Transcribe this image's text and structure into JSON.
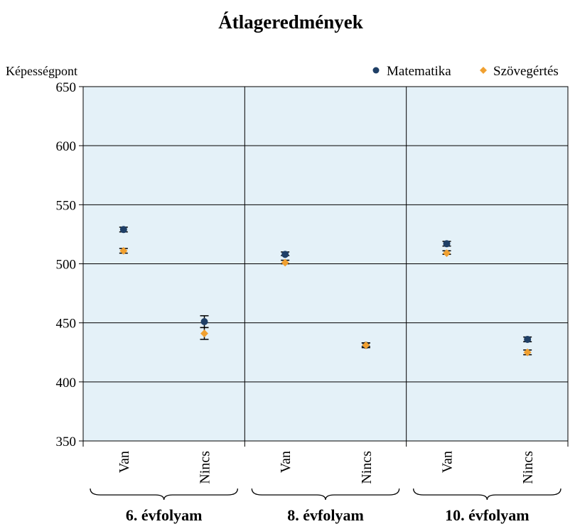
{
  "chart_data": {
    "type": "scatter",
    "title": "Átlageredmények",
    "ylabel": "Képességpont",
    "xlabel": "",
    "ylim": [
      350,
      650
    ],
    "yticks": [
      350,
      400,
      450,
      500,
      550,
      600,
      650
    ],
    "grid": true,
    "legend_position": "top-right",
    "categories": [
      "Van",
      "Nincs",
      "Van",
      "Nincs",
      "Van",
      "Nincs"
    ],
    "groups": [
      {
        "label": "6. évfolyam",
        "categories": [
          "Van",
          "Nincs"
        ]
      },
      {
        "label": "8. évfolyam",
        "categories": [
          "Van",
          "Nincs"
        ]
      },
      {
        "label": "10. évfolyam",
        "categories": [
          "Van",
          "Nincs"
        ]
      }
    ],
    "series": [
      {
        "name": "Matematika",
        "marker": "circle",
        "color": "#1f3f66",
        "values": [
          529,
          451,
          508,
          431,
          517,
          436
        ],
        "error_low": [
          527,
          446,
          507,
          430,
          515,
          434
        ],
        "error_high": [
          531,
          456,
          510,
          433,
          519,
          438
        ]
      },
      {
        "name": "Szövegértés",
        "marker": "diamond",
        "color": "#f0a030",
        "values": [
          511,
          441,
          501,
          431,
          509,
          425
        ],
        "error_low": [
          509,
          436,
          500,
          429,
          508,
          423
        ],
        "error_high": [
          513,
          446,
          503,
          433,
          511,
          427
        ]
      }
    ],
    "colors": {
      "plot_background": "#e4f1f8",
      "grid": "#000000",
      "error_bar": "#000000"
    }
  }
}
